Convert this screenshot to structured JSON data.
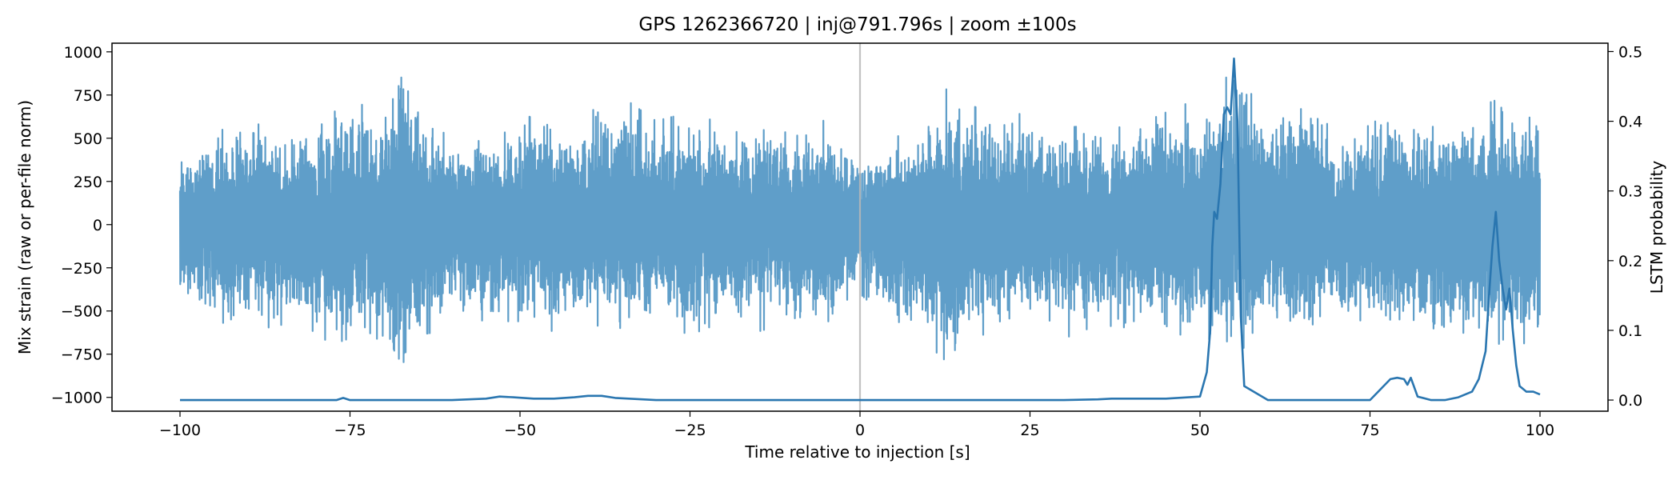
{
  "chart_data": {
    "type": "line",
    "title": "GPS 1262366720 | inj@791.796s | zoom ±100s",
    "xlabel": "Time relative to injection [s]",
    "ylabel": "Mix strain (raw or per-file norm)",
    "y2label": "LSTM probability",
    "xlim": [
      -110,
      110
    ],
    "ylim": [
      -1080,
      1050
    ],
    "y2lim": [
      -0.016,
      0.512
    ],
    "xticks": [
      -100,
      -75,
      -50,
      -25,
      0,
      25,
      50,
      75,
      100
    ],
    "yticks": [
      -1000,
      -750,
      -500,
      -250,
      0,
      250,
      500,
      750,
      1000
    ],
    "y2ticks": [
      0.0,
      0.1,
      0.2,
      0.3,
      0.4,
      0.5
    ],
    "xtick_labels": [
      "−100",
      "−75",
      "−50",
      "−25",
      "0",
      "25",
      "50",
      "75",
      "100"
    ],
    "ytick_labels": [
      "−1000",
      "−750",
      "−500",
      "−250",
      "0",
      "250",
      "500",
      "750",
      "1000"
    ],
    "y2tick_labels": [
      "0.0",
      "0.1",
      "0.2",
      "0.3",
      "0.4",
      "0.5"
    ],
    "injection_marker_x": 0,
    "colors": {
      "strain": "#5f9ec9",
      "lstm": "#2a76b0",
      "marker": "#b8b8b8"
    },
    "strain_envelope": {
      "x": [
        -100,
        -95,
        -90,
        -85,
        -80,
        -76,
        -74,
        -72,
        -70,
        -67.5,
        -65,
        -62,
        -60,
        -55,
        -50,
        -45,
        -40,
        -35,
        -30,
        -25,
        -20,
        -15,
        -10,
        -5,
        0,
        5,
        10,
        13.5,
        15,
        20,
        25,
        30,
        35,
        40,
        45,
        48,
        50,
        52,
        54.5,
        57,
        60,
        62,
        65,
        70,
        75,
        80,
        85,
        88,
        90,
        93,
        95,
        98,
        100
      ],
      "upper": [
        420,
        520,
        640,
        520,
        600,
        680,
        740,
        620,
        650,
        960,
        650,
        620,
        560,
        540,
        650,
        560,
        650,
        740,
        600,
        650,
        580,
        560,
        620,
        600,
        340,
        520,
        560,
        850,
        720,
        620,
        650,
        560,
        580,
        560,
        650,
        700,
        560,
        700,
        960,
        800,
        560,
        700,
        820,
        500,
        620,
        600,
        680,
        720,
        580,
        720,
        700,
        680,
        680
      ],
      "lower": [
        -420,
        -550,
        -620,
        -580,
        -620,
        -760,
        -700,
        -680,
        -640,
        -980,
        -640,
        -620,
        -520,
        -560,
        -560,
        -620,
        -580,
        -600,
        -560,
        -640,
        -560,
        -620,
        -560,
        -600,
        -400,
        -580,
        -640,
        -920,
        -700,
        -600,
        -560,
        -660,
        -580,
        -600,
        -640,
        -700,
        -640,
        -740,
        -760,
        -700,
        -560,
        -600,
        -700,
        -520,
        -680,
        -600,
        -700,
        -740,
        -600,
        -700,
        -680,
        -700,
        -720
      ]
    },
    "series": [
      {
        "name": "",
        "axis": "right",
        "x": [
          -100,
          -77,
          -76,
          -75,
          -60,
          -55,
          -53,
          -51,
          -48,
          -45,
          -42,
          -40,
          -38,
          -36,
          -30,
          0,
          30,
          35,
          37,
          45,
          50,
          51,
          51.5,
          51.8,
          52.1,
          52.5,
          53,
          53.5,
          54,
          54.5,
          55,
          55.5,
          56,
          56.5,
          60,
          75,
          77,
          78,
          79,
          80,
          80.5,
          81,
          82,
          84,
          86,
          88,
          90,
          91,
          92,
          92.5,
          93,
          93.5,
          94,
          94.5,
          95,
          95.5,
          96,
          96.5,
          97,
          98,
          99,
          100
        ],
        "values": [
          0.0,
          0.0,
          0.003,
          0.0,
          0.0,
          0.002,
          0.005,
          0.004,
          0.002,
          0.002,
          0.004,
          0.006,
          0.006,
          0.003,
          0.0,
          0.0,
          0.0,
          0.001,
          0.002,
          0.002,
          0.005,
          0.04,
          0.1,
          0.22,
          0.27,
          0.26,
          0.31,
          0.41,
          0.42,
          0.41,
          0.49,
          0.4,
          0.12,
          0.02,
          0.0,
          0.0,
          0.02,
          0.03,
          0.032,
          0.03,
          0.022,
          0.032,
          0.005,
          0.0,
          0.0,
          0.004,
          0.012,
          0.03,
          0.07,
          0.15,
          0.22,
          0.27,
          0.2,
          0.16,
          0.13,
          0.16,
          0.1,
          0.05,
          0.02,
          0.012,
          0.012,
          0.008
        ]
      }
    ]
  }
}
